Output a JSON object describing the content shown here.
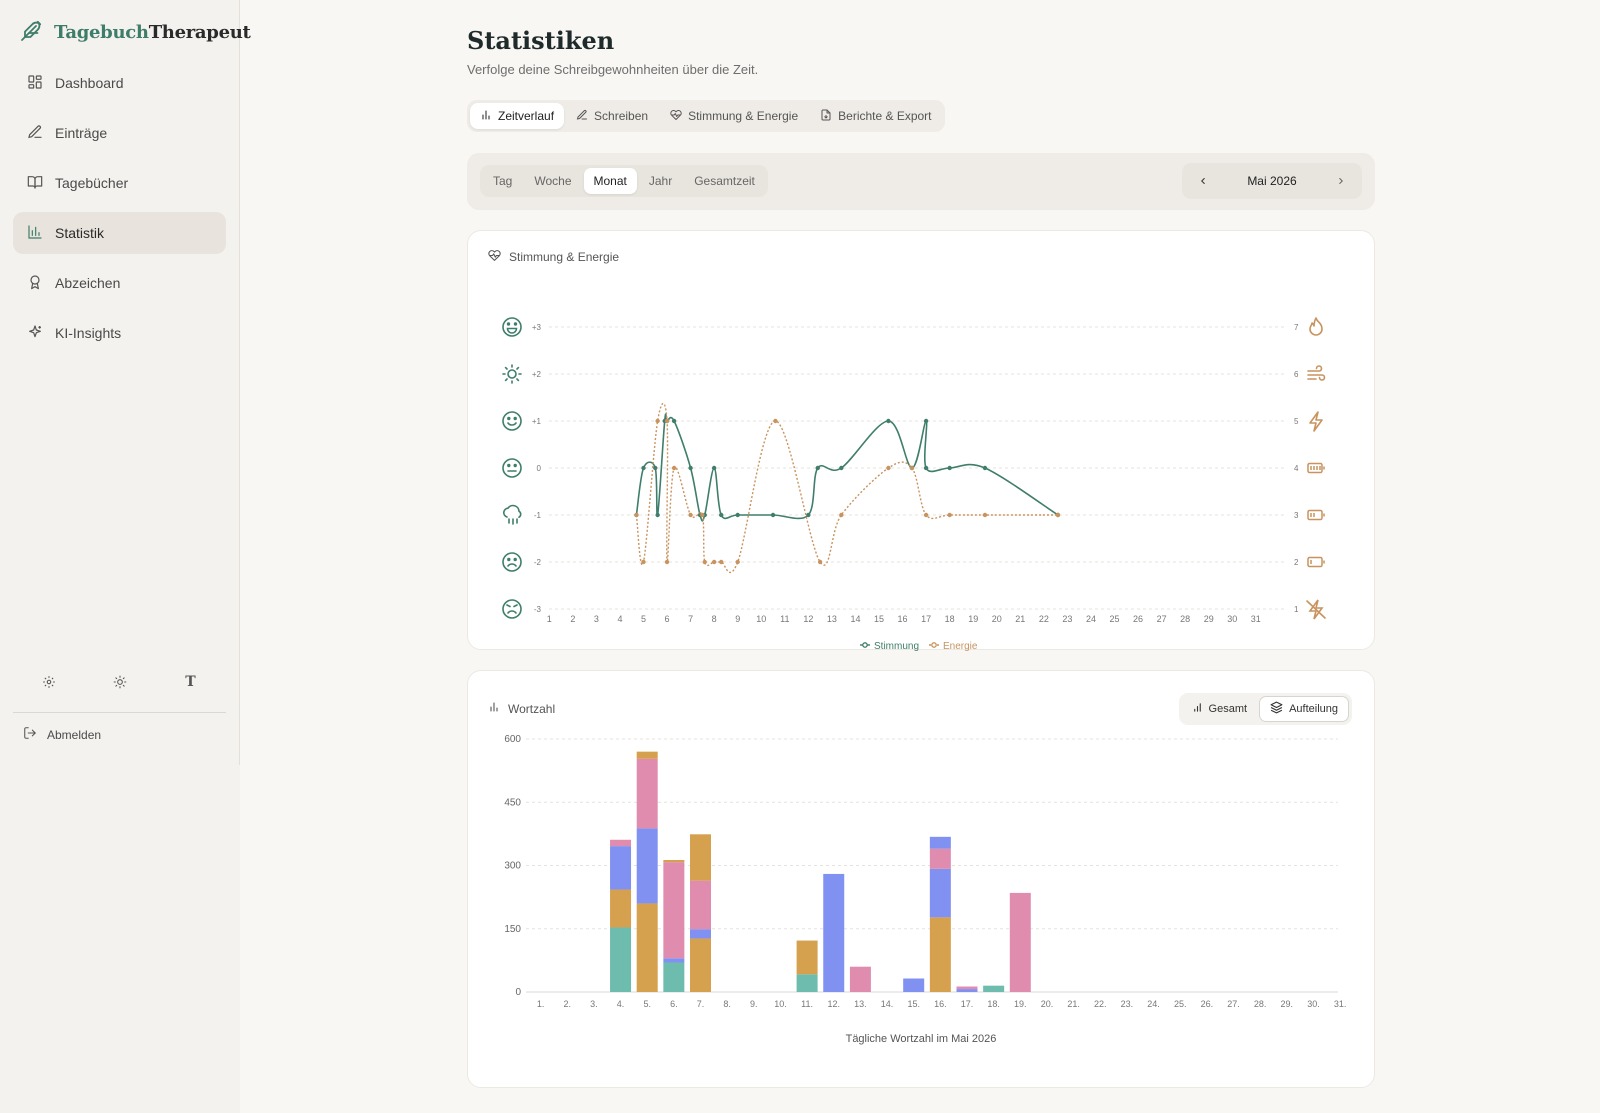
{
  "app": {
    "logo_part1": "Tagebuch",
    "logo_part2": "Therapeut"
  },
  "sidebar": {
    "items": [
      {
        "label": "Dashboard",
        "icon": "dashboard-icon",
        "active": false
      },
      {
        "label": "Einträge",
        "icon": "pen-icon",
        "active": false
      },
      {
        "label": "Tagebücher",
        "icon": "book-icon",
        "active": false
      },
      {
        "label": "Statistik",
        "icon": "chart-icon",
        "active": true
      },
      {
        "label": "Abzeichen",
        "icon": "badge-icon",
        "active": false
      },
      {
        "label": "KI-Insights",
        "icon": "sparkle-icon",
        "active": false
      }
    ],
    "tools": {
      "font_label": "T"
    },
    "logout_label": "Abmelden"
  },
  "page": {
    "title": "Statistiken",
    "subtitle": "Verfolge deine Schreibgewohnheiten über die Zeit."
  },
  "tabs": [
    {
      "label": "Zeitverlauf",
      "active": true
    },
    {
      "label": "Schreiben",
      "active": false
    },
    {
      "label": "Stimmung & Energie",
      "active": false
    },
    {
      "label": "Berichte & Export",
      "active": false
    }
  ],
  "periods": [
    {
      "label": "Tag",
      "active": false
    },
    {
      "label": "Woche",
      "active": false
    },
    {
      "label": "Monat",
      "active": true
    },
    {
      "label": "Jahr",
      "active": false
    },
    {
      "label": "Gesamtzeit",
      "active": false
    }
  ],
  "month_label": "Mai 2026",
  "colors": {
    "mood": "#3f7e6b",
    "energy": "#c8935e",
    "teal": "#6dbcad",
    "orange": "#d6a14e",
    "blue": "#8191f2",
    "pink": "#e08cae"
  },
  "mood_card": {
    "title": "Stimmung & Energie"
  },
  "words_card": {
    "title": "Wortzahl",
    "toggle": [
      {
        "label": "Gesamt",
        "active": false
      },
      {
        "label": "Aufteilung",
        "active": true
      }
    ]
  },
  "chart_data": [
    {
      "type": "line",
      "title": "Stimmung & Energie",
      "x_ticks": [
        "1",
        "2",
        "3",
        "4",
        "5",
        "6",
        "7",
        "8",
        "9",
        "10",
        "11",
        "12",
        "13",
        "14",
        "15",
        "16",
        "17",
        "18",
        "19",
        "20",
        "21",
        "22",
        "23",
        "24",
        "25",
        "26",
        "27",
        "28",
        "29",
        "30",
        "31"
      ],
      "ylim_left": [
        -3,
        3
      ],
      "y_ticks_left": [
        "+3",
        "+2",
        "+1",
        "0",
        "-1",
        "-2",
        "-3"
      ],
      "ylim_right": [
        1,
        7
      ],
      "y_ticks_right": [
        "7",
        "6",
        "5",
        "4",
        "3",
        "2",
        "1"
      ],
      "legend": [
        "Stimmung",
        "Energie"
      ],
      "series": [
        {
          "name": "Stimmung",
          "axis": "left",
          "style": "solid",
          "points": [
            [
              4.7,
              -1
            ],
            [
              5.0,
              0
            ],
            [
              5.5,
              0
            ],
            [
              5.6,
              -1
            ],
            [
              5.9,
              1
            ],
            [
              6.0,
              1
            ],
            [
              6.3,
              1
            ],
            [
              7.0,
              0
            ],
            [
              7.4,
              -1
            ],
            [
              7.6,
              -1
            ],
            [
              8.0,
              0
            ],
            [
              8.3,
              -1
            ],
            [
              9.0,
              -1
            ],
            [
              10.5,
              -1
            ],
            [
              12.0,
              -1
            ],
            [
              12.4,
              0
            ],
            [
              13.4,
              0
            ],
            [
              15.4,
              1
            ],
            [
              16.4,
              0
            ],
            [
              17.0,
              1
            ],
            [
              17.0,
              0
            ],
            [
              18.0,
              0
            ],
            [
              19.5,
              0
            ],
            [
              22.6,
              -1
            ]
          ]
        },
        {
          "name": "Energie",
          "axis": "right",
          "style": "dotted",
          "points": [
            [
              4.7,
              3
            ],
            [
              5.0,
              2
            ],
            [
              5.6,
              5
            ],
            [
              6.0,
              5
            ],
            [
              6.0,
              2
            ],
            [
              6.3,
              4
            ],
            [
              7.0,
              3
            ],
            [
              7.5,
              3
            ],
            [
              7.6,
              2
            ],
            [
              8.0,
              2
            ],
            [
              8.3,
              2
            ],
            [
              9.0,
              2
            ],
            [
              10.6,
              5
            ],
            [
              12.5,
              2
            ],
            [
              13.4,
              3
            ],
            [
              15.4,
              4
            ],
            [
              16.4,
              4
            ],
            [
              17.0,
              3
            ],
            [
              18.0,
              3
            ],
            [
              19.5,
              3
            ],
            [
              22.6,
              3
            ]
          ]
        }
      ]
    },
    {
      "type": "bar",
      "stacked": true,
      "title": "Wortzahl",
      "xlabel": "Tägliche Wortzahl im Mai 2026",
      "ylim": [
        0,
        600
      ],
      "y_ticks": [
        "0",
        "150",
        "300",
        "450",
        "600"
      ],
      "categories": [
        "1.",
        "2.",
        "3.",
        "4.",
        "5.",
        "6.",
        "7.",
        "8.",
        "9.",
        "10.",
        "11.",
        "12.",
        "13.",
        "14.",
        "15.",
        "16.",
        "17.",
        "18.",
        "19.",
        "20.",
        "21.",
        "22.",
        "23.",
        "24.",
        "25.",
        "26.",
        "27.",
        "28.",
        "29.",
        "30.",
        "31."
      ],
      "series": [
        {
          "color": "teal",
          "values": [
            0,
            0,
            0,
            153,
            0,
            70,
            0,
            0,
            0,
            0,
            42,
            0,
            0,
            0,
            0,
            0,
            0,
            15,
            0,
            0,
            0,
            0,
            0,
            0,
            0,
            0,
            0,
            0,
            0,
            0,
            0
          ]
        },
        {
          "color": "orange",
          "values": [
            0,
            0,
            0,
            90,
            210,
            0,
            127,
            0,
            0,
            0,
            80,
            0,
            0,
            0,
            0,
            177,
            0,
            0,
            0,
            0,
            0,
            0,
            0,
            0,
            0,
            0,
            0,
            0,
            0,
            0,
            0
          ]
        },
        {
          "color": "blue",
          "values": [
            0,
            0,
            0,
            103,
            178,
            10,
            22,
            0,
            0,
            0,
            0,
            280,
            0,
            0,
            32,
            115,
            7,
            0,
            0,
            0,
            0,
            0,
            0,
            0,
            0,
            0,
            0,
            0,
            0,
            0,
            0
          ]
        },
        {
          "color": "pink",
          "values": [
            0,
            0,
            0,
            15,
            165,
            228,
            115,
            0,
            0,
            0,
            0,
            0,
            60,
            0,
            0,
            48,
            6,
            0,
            235,
            0,
            0,
            0,
            0,
            0,
            0,
            0,
            0,
            0,
            0,
            0,
            0
          ]
        },
        {
          "color": "orange",
          "values": [
            0,
            0,
            0,
            0,
            17,
            5,
            110,
            0,
            0,
            0,
            0,
            0,
            0,
            0,
            0,
            0,
            0,
            0,
            0,
            0,
            0,
            0,
            0,
            0,
            0,
            0,
            0,
            0,
            0,
            0,
            0
          ]
        },
        {
          "color": "blue",
          "values": [
            0,
            0,
            0,
            0,
            0,
            0,
            0,
            0,
            0,
            0,
            0,
            0,
            0,
            0,
            0,
            28,
            0,
            0,
            0,
            0,
            0,
            0,
            0,
            0,
            0,
            0,
            0,
            0,
            0,
            0,
            0
          ]
        }
      ]
    }
  ]
}
